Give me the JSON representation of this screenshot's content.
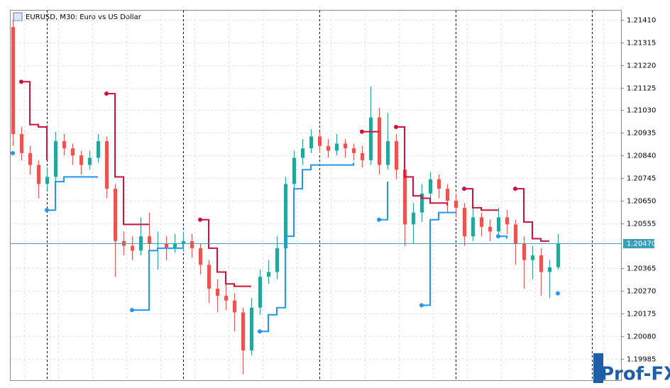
{
  "chart_data": {
    "type": "candlestick",
    "title": "EURUSD, M30:  Euro vs US Dollar",
    "watermark": "Prof-FX",
    "bull_color": "#26a69a",
    "bear_color": "#ef5350",
    "grid": true,
    "ylim": [
      1.19895,
      1.21449
    ],
    "yticks": [
      {
        "value": 1.2141,
        "label": "1.21410"
      },
      {
        "value": 1.21315,
        "label": "1.21315"
      },
      {
        "value": 1.2122,
        "label": "1.21220"
      },
      {
        "value": 1.21125,
        "label": "1.21125"
      },
      {
        "value": 1.2103,
        "label": "1.21030"
      },
      {
        "value": 1.20935,
        "label": "1.20935"
      },
      {
        "value": 1.2084,
        "label": "1.20840"
      },
      {
        "value": 1.20745,
        "label": "1.20745"
      },
      {
        "value": 1.2065,
        "label": "1.20650"
      },
      {
        "value": 1.20555,
        "label": "1.20555"
      },
      {
        "value": 1.20365,
        "label": "1.20365"
      },
      {
        "value": 1.2027,
        "label": "1.20270"
      },
      {
        "value": 1.20175,
        "label": "1.20175"
      },
      {
        "value": 1.2008,
        "label": "1.20080"
      },
      {
        "value": 1.19985,
        "label": "1.19985"
      }
    ],
    "current_price": {
      "value": 1.2047,
      "label": "1.20470",
      "color": "#3aa0b8"
    },
    "open": [
      1.2138,
      1.2093,
      1.2085,
      1.208,
      1.2072,
      1.2075,
      1.209,
      1.2087,
      1.2084,
      1.208,
      1.2083,
      1.209,
      1.207,
      1.2048,
      1.2046,
      1.2044,
      1.205,
      1.2047,
      1.2047,
      1.2045,
      1.2047,
      1.2048,
      1.2045,
      1.2038,
      1.2028,
      1.2025,
      1.2023,
      1.2018,
      1.2002,
      1.202,
      1.2033,
      1.2035,
      1.2045,
      1.2072,
      1.2083,
      1.2087,
      1.2092,
      1.2088,
      1.2086,
      1.2089,
      1.2087,
      1.2085,
      1.2082,
      1.21,
      1.208,
      1.209,
      1.2078,
      1.2055,
      1.206,
      1.2068,
      1.2074,
      1.207,
      1.2065,
      1.2062,
      1.205,
      1.2058,
      1.2054,
      1.2052,
      1.2058,
      1.2055,
      1.2047,
      1.204,
      1.2042,
      1.2035,
      1.2037
    ],
    "high": [
      1.2141,
      1.2096,
      1.2088,
      1.2082,
      1.2079,
      1.2094,
      1.2093,
      1.2089,
      1.2086,
      1.2086,
      1.2093,
      1.2092,
      1.2072,
      1.2052,
      1.205,
      1.2058,
      1.206,
      1.2052,
      1.205,
      1.2051,
      1.2052,
      1.2051,
      1.2047,
      1.204,
      1.2032,
      1.203,
      1.2026,
      1.202,
      1.2024,
      1.2036,
      1.204,
      1.205,
      1.2075,
      1.2086,
      1.2091,
      1.2095,
      1.2094,
      1.2091,
      1.2093,
      1.2091,
      1.2089,
      1.2088,
      1.2113,
      1.2104,
      1.2102,
      1.2093,
      1.208,
      1.2064,
      1.2072,
      1.2077,
      1.2076,
      1.2072,
      1.2068,
      1.2064,
      1.2062,
      1.206,
      1.2057,
      1.2062,
      1.2061,
      1.2057,
      1.205,
      1.2046,
      1.2045,
      1.204,
      1.2051
    ],
    "low": [
      1.2088,
      1.2082,
      1.2076,
      1.2066,
      1.2069,
      1.2073,
      1.2084,
      1.208,
      1.2076,
      1.2078,
      1.2081,
      1.2066,
      1.2033,
      1.2042,
      1.204,
      1.2042,
      1.2043,
      1.2036,
      1.204,
      1.2043,
      1.2044,
      1.2041,
      1.2034,
      1.2022,
      1.2018,
      1.2019,
      1.201,
      1.1992,
      1.2,
      1.2017,
      1.203,
      1.2032,
      1.2043,
      1.207,
      1.208,
      1.2085,
      1.2085,
      1.2083,
      1.2084,
      1.2083,
      1.2082,
      1.2079,
      1.208,
      1.2076,
      1.2078,
      1.2074,
      1.2046,
      1.2047,
      1.2056,
      1.2065,
      1.2066,
      1.206,
      1.2058,
      1.2046,
      1.2048,
      1.205,
      1.2048,
      1.205,
      1.2051,
      1.2038,
      1.2028,
      1.2032,
      1.2025,
      1.2024,
      1.2036
    ],
    "close": [
      1.2093,
      1.2085,
      1.208,
      1.2072,
      1.2075,
      1.209,
      1.2087,
      1.2084,
      1.208,
      1.2083,
      1.209,
      1.207,
      1.2048,
      1.2046,
      1.2044,
      1.205,
      1.2047,
      1.2047,
      1.2045,
      1.2047,
      1.2048,
      1.2045,
      1.2038,
      1.2028,
      1.2025,
      1.2023,
      1.2018,
      1.2002,
      1.202,
      1.2033,
      1.2035,
      1.2045,
      1.2072,
      1.2083,
      1.2087,
      1.2092,
      1.2088,
      1.2086,
      1.2089,
      1.2087,
      1.2085,
      1.2082,
      1.21,
      1.208,
      1.209,
      1.2078,
      1.2055,
      1.206,
      1.2068,
      1.2074,
      1.207,
      1.2065,
      1.2062,
      1.205,
      1.2058,
      1.2054,
      1.2052,
      1.2058,
      1.2055,
      1.2047,
      1.204,
      1.2042,
      1.2035,
      1.2037,
      1.2047
    ],
    "upper": {
      "color": "#d0103a",
      "values": [
        null,
        1.2115,
        1.2097,
        1.2096,
        1.2082,
        null,
        null,
        null,
        null,
        null,
        null,
        1.211,
        1.2075,
        1.2055,
        1.2055,
        1.2055,
        1.2055,
        null,
        null,
        null,
        null,
        null,
        1.2057,
        1.2045,
        1.2035,
        1.203,
        1.2029,
        1.2029,
        1.2029,
        null,
        null,
        null,
        null,
        null,
        null,
        null,
        null,
        null,
        null,
        null,
        null,
        1.2094,
        1.2094,
        1.2094,
        null,
        1.2096,
        1.2075,
        1.2067,
        1.2066,
        1.2064,
        1.2064,
        1.2063,
        null,
        1.207,
        1.2062,
        1.2061,
        1.2061,
        1.2061,
        null,
        1.207,
        1.2056,
        1.2049,
        1.2048,
        1.2048,
        null
      ]
    },
    "lower": {
      "color": "#2196f3",
      "values": [
        1.2085,
        null,
        null,
        null,
        1.2061,
        1.2073,
        1.2075,
        1.2075,
        1.2075,
        1.2075,
        1.2075,
        null,
        null,
        null,
        1.2019,
        1.2019,
        1.2044,
        1.2045,
        1.2045,
        1.2045,
        1.2047,
        null,
        null,
        null,
        null,
        null,
        null,
        null,
        null,
        1.201,
        1.2017,
        1.202,
        1.205,
        1.207,
        1.2078,
        1.208,
        1.208,
        1.208,
        1.208,
        1.208,
        1.2081,
        null,
        null,
        1.2057,
        1.2073,
        null,
        null,
        null,
        1.2021,
        1.2057,
        1.206,
        1.206,
        1.206,
        null,
        null,
        null,
        null,
        1.205,
        1.2049,
        null,
        null,
        null,
        null,
        null,
        1.2026
      ]
    }
  }
}
